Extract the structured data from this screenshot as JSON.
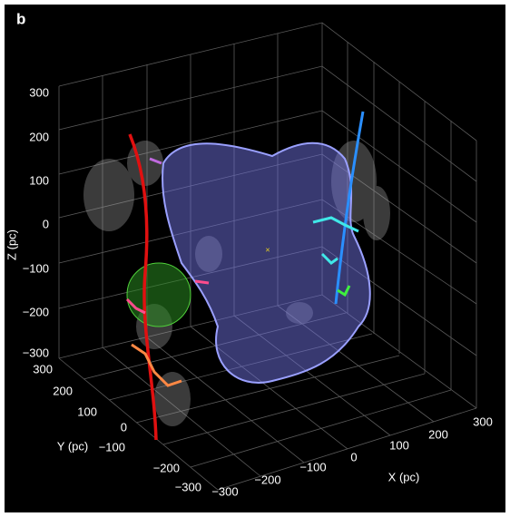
{
  "figure": {
    "panel_label": "b",
    "z_axis": {
      "label": "Z (pc)",
      "ticks": [
        "300",
        "200",
        "100",
        "0",
        "−100",
        "−200",
        "−300"
      ]
    },
    "y_axis": {
      "label": "Y (pc)",
      "ticks": [
        "300",
        "200",
        "100",
        "0",
        "−100",
        "−200",
        "−300"
      ]
    },
    "x_axis": {
      "label": "X (pc)",
      "ticks": [
        "−300",
        "−200",
        "−100",
        "0",
        "100",
        "200",
        "300"
      ]
    }
  }
}
